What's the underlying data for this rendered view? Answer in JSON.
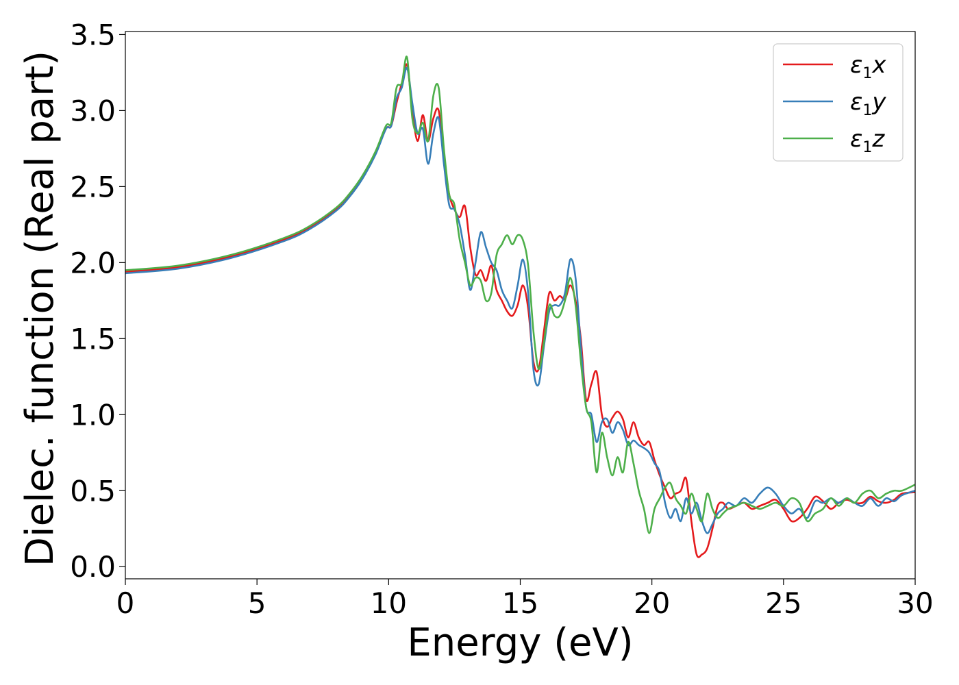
{
  "chart_data": {
    "type": "line",
    "title": "",
    "xlabel": "Energy (eV)",
    "ylabel": "Dielec. function (Real part)",
    "xlim": [
      0,
      30
    ],
    "ylim": [
      -0.08,
      3.52
    ],
    "xticks": [
      0,
      5,
      10,
      15,
      20,
      25,
      30
    ],
    "xtick_labels": [
      "0",
      "5",
      "10",
      "15",
      "20",
      "25",
      "30"
    ],
    "yticks": [
      0.0,
      0.5,
      1.0,
      1.5,
      2.0,
      2.5,
      3.0,
      3.5
    ],
    "ytick_labels": [
      "0.0",
      "0.5",
      "1.0",
      "1.5",
      "2.0",
      "2.5",
      "3.0",
      "3.5"
    ],
    "grid": false,
    "legend_position": "top-right",
    "series": [
      {
        "name": "ε₁x",
        "legend_base": "ε",
        "legend_sub": "1",
        "legend_var": "x",
        "color": "#e41a1c",
        "x": [
          0,
          2,
          4,
          6,
          7,
          8,
          8.5,
          9,
          9.5,
          9.9,
          10.1,
          10.3,
          10.5,
          10.7,
          10.9,
          11.1,
          11.3,
          11.5,
          11.7,
          11.9,
          12.1,
          12.3,
          12.5,
          12.7,
          12.9,
          13.1,
          13.3,
          13.5,
          13.7,
          13.9,
          14.1,
          14.3,
          14.5,
          14.7,
          14.9,
          15.1,
          15.3,
          15.5,
          15.7,
          15.9,
          16.1,
          16.3,
          16.5,
          16.7,
          16.9,
          17.1,
          17.3,
          17.5,
          17.7,
          17.9,
          18.1,
          18.3,
          18.5,
          18.7,
          18.9,
          19.1,
          19.3,
          19.5,
          19.7,
          19.9,
          20.1,
          20.3,
          20.5,
          20.7,
          20.9,
          21.1,
          21.3,
          21.5,
          21.7,
          21.9,
          22.1,
          22.3,
          22.5,
          22.7,
          22.9,
          23.2,
          23.5,
          23.8,
          24.1,
          24.4,
          24.7,
          25,
          25.3,
          25.6,
          25.9,
          26.2,
          26.5,
          26.8,
          27.1,
          27.4,
          27.7,
          28,
          28.3,
          28.6,
          28.9,
          29.2,
          29.5,
          30
        ],
        "y": [
          1.94,
          1.97,
          2.04,
          2.15,
          2.23,
          2.35,
          2.44,
          2.56,
          2.72,
          2.88,
          2.9,
          3.05,
          3.18,
          3.3,
          3.0,
          2.8,
          2.97,
          2.8,
          2.95,
          3.0,
          2.7,
          2.45,
          2.35,
          2.3,
          2.37,
          2.1,
          1.92,
          1.95,
          1.88,
          1.98,
          1.82,
          1.75,
          1.68,
          1.65,
          1.72,
          1.85,
          1.7,
          1.35,
          1.3,
          1.55,
          1.8,
          1.75,
          1.78,
          1.76,
          1.85,
          1.75,
          1.5,
          1.1,
          1.2,
          1.28,
          1.0,
          0.92,
          0.98,
          1.02,
          0.97,
          0.85,
          0.95,
          0.85,
          0.8,
          0.82,
          0.7,
          0.6,
          0.52,
          0.45,
          0.48,
          0.5,
          0.58,
          0.3,
          0.08,
          0.08,
          0.12,
          0.25,
          0.4,
          0.42,
          0.38,
          0.4,
          0.42,
          0.38,
          0.4,
          0.42,
          0.44,
          0.38,
          0.3,
          0.32,
          0.38,
          0.46,
          0.43,
          0.38,
          0.42,
          0.44,
          0.42,
          0.42,
          0.46,
          0.43,
          0.42,
          0.44,
          0.48,
          0.49
        ]
      },
      {
        "name": "ε₁y",
        "legend_base": "ε",
        "legend_sub": "1",
        "legend_var": "y",
        "color": "#377eb8",
        "x": [
          0,
          2,
          4,
          6,
          7,
          8,
          8.5,
          9,
          9.5,
          9.9,
          10.1,
          10.3,
          10.5,
          10.7,
          10.9,
          11.1,
          11.3,
          11.5,
          11.7,
          11.9,
          12.1,
          12.3,
          12.5,
          12.7,
          12.9,
          13.1,
          13.3,
          13.5,
          13.7,
          13.9,
          14.1,
          14.3,
          14.5,
          14.7,
          14.9,
          15.1,
          15.3,
          15.5,
          15.7,
          15.9,
          16.1,
          16.3,
          16.5,
          16.7,
          16.9,
          17.1,
          17.3,
          17.5,
          17.7,
          17.9,
          18.1,
          18.3,
          18.5,
          18.7,
          18.9,
          19.1,
          19.3,
          19.5,
          19.7,
          19.9,
          20.1,
          20.3,
          20.5,
          20.7,
          20.9,
          21.1,
          21.3,
          21.5,
          21.7,
          21.9,
          22.1,
          22.3,
          22.5,
          22.7,
          22.9,
          23.2,
          23.5,
          23.8,
          24.1,
          24.4,
          24.7,
          25,
          25.3,
          25.6,
          25.9,
          26.2,
          26.5,
          26.8,
          27.1,
          27.4,
          27.7,
          28,
          28.3,
          28.6,
          28.9,
          29.2,
          29.5,
          30
        ],
        "y": [
          1.93,
          1.96,
          2.03,
          2.14,
          2.22,
          2.34,
          2.43,
          2.55,
          2.71,
          2.88,
          2.9,
          3.08,
          3.15,
          3.28,
          3.05,
          2.85,
          2.88,
          2.65,
          2.85,
          2.95,
          2.65,
          2.38,
          2.35,
          2.25,
          2.05,
          1.82,
          2.0,
          2.2,
          2.1,
          2.0,
          1.95,
          1.82,
          1.75,
          1.7,
          1.85,
          2.02,
          1.8,
          1.3,
          1.2,
          1.45,
          1.68,
          1.72,
          1.72,
          1.8,
          2.02,
          1.9,
          1.45,
          1.05,
          1.0,
          0.82,
          0.95,
          0.97,
          0.88,
          0.95,
          0.9,
          0.8,
          0.83,
          0.8,
          0.78,
          0.75,
          0.68,
          0.62,
          0.42,
          0.32,
          0.38,
          0.3,
          0.45,
          0.35,
          0.42,
          0.3,
          0.22,
          0.28,
          0.35,
          0.38,
          0.42,
          0.4,
          0.45,
          0.42,
          0.48,
          0.52,
          0.48,
          0.4,
          0.35,
          0.38,
          0.32,
          0.43,
          0.42,
          0.45,
          0.42,
          0.45,
          0.42,
          0.4,
          0.45,
          0.4,
          0.45,
          0.43,
          0.47,
          0.5
        ]
      },
      {
        "name": "ε₁z",
        "legend_base": "ε",
        "legend_sub": "1",
        "legend_var": "z",
        "color": "#4daf4a",
        "x": [
          0,
          2,
          4,
          6,
          7,
          8,
          8.5,
          9,
          9.5,
          9.9,
          10.1,
          10.3,
          10.5,
          10.7,
          10.9,
          11.1,
          11.3,
          11.5,
          11.7,
          11.9,
          12.1,
          12.3,
          12.5,
          12.7,
          12.9,
          13.1,
          13.3,
          13.5,
          13.7,
          13.9,
          14.1,
          14.3,
          14.5,
          14.7,
          14.9,
          15.1,
          15.3,
          15.5,
          15.7,
          15.9,
          16.1,
          16.3,
          16.5,
          16.7,
          16.9,
          17.1,
          17.3,
          17.5,
          17.7,
          17.9,
          18.1,
          18.3,
          18.5,
          18.7,
          18.9,
          19.1,
          19.3,
          19.5,
          19.7,
          19.9,
          20.1,
          20.3,
          20.5,
          20.7,
          20.9,
          21.1,
          21.3,
          21.5,
          21.7,
          21.9,
          22.1,
          22.3,
          22.5,
          22.7,
          22.9,
          23.2,
          23.5,
          23.8,
          24.1,
          24.4,
          24.7,
          25,
          25.3,
          25.6,
          25.9,
          26.2,
          26.5,
          26.8,
          27.1,
          27.4,
          27.7,
          28,
          28.3,
          28.6,
          28.9,
          29.2,
          29.5,
          30
        ],
        "y": [
          1.95,
          1.98,
          2.05,
          2.16,
          2.24,
          2.36,
          2.45,
          2.57,
          2.73,
          2.9,
          2.92,
          3.15,
          3.18,
          3.35,
          2.95,
          2.85,
          2.92,
          2.8,
          3.1,
          3.15,
          2.75,
          2.45,
          2.38,
          2.15,
          2.0,
          1.85,
          1.9,
          1.88,
          1.75,
          1.8,
          2.05,
          2.12,
          2.18,
          2.12,
          2.18,
          2.15,
          1.98,
          1.55,
          1.3,
          1.48,
          1.72,
          1.65,
          1.65,
          1.75,
          1.9,
          1.72,
          1.35,
          1.05,
          0.95,
          0.62,
          0.88,
          0.72,
          0.6,
          0.72,
          0.62,
          0.82,
          0.68,
          0.5,
          0.38,
          0.22,
          0.38,
          0.45,
          0.52,
          0.55,
          0.45,
          0.4,
          0.35,
          0.48,
          0.38,
          0.3,
          0.48,
          0.38,
          0.32,
          0.35,
          0.38,
          0.4,
          0.42,
          0.4,
          0.38,
          0.4,
          0.42,
          0.4,
          0.45,
          0.42,
          0.3,
          0.35,
          0.38,
          0.45,
          0.4,
          0.45,
          0.42,
          0.48,
          0.5,
          0.45,
          0.48,
          0.5,
          0.5,
          0.54
        ]
      }
    ]
  }
}
